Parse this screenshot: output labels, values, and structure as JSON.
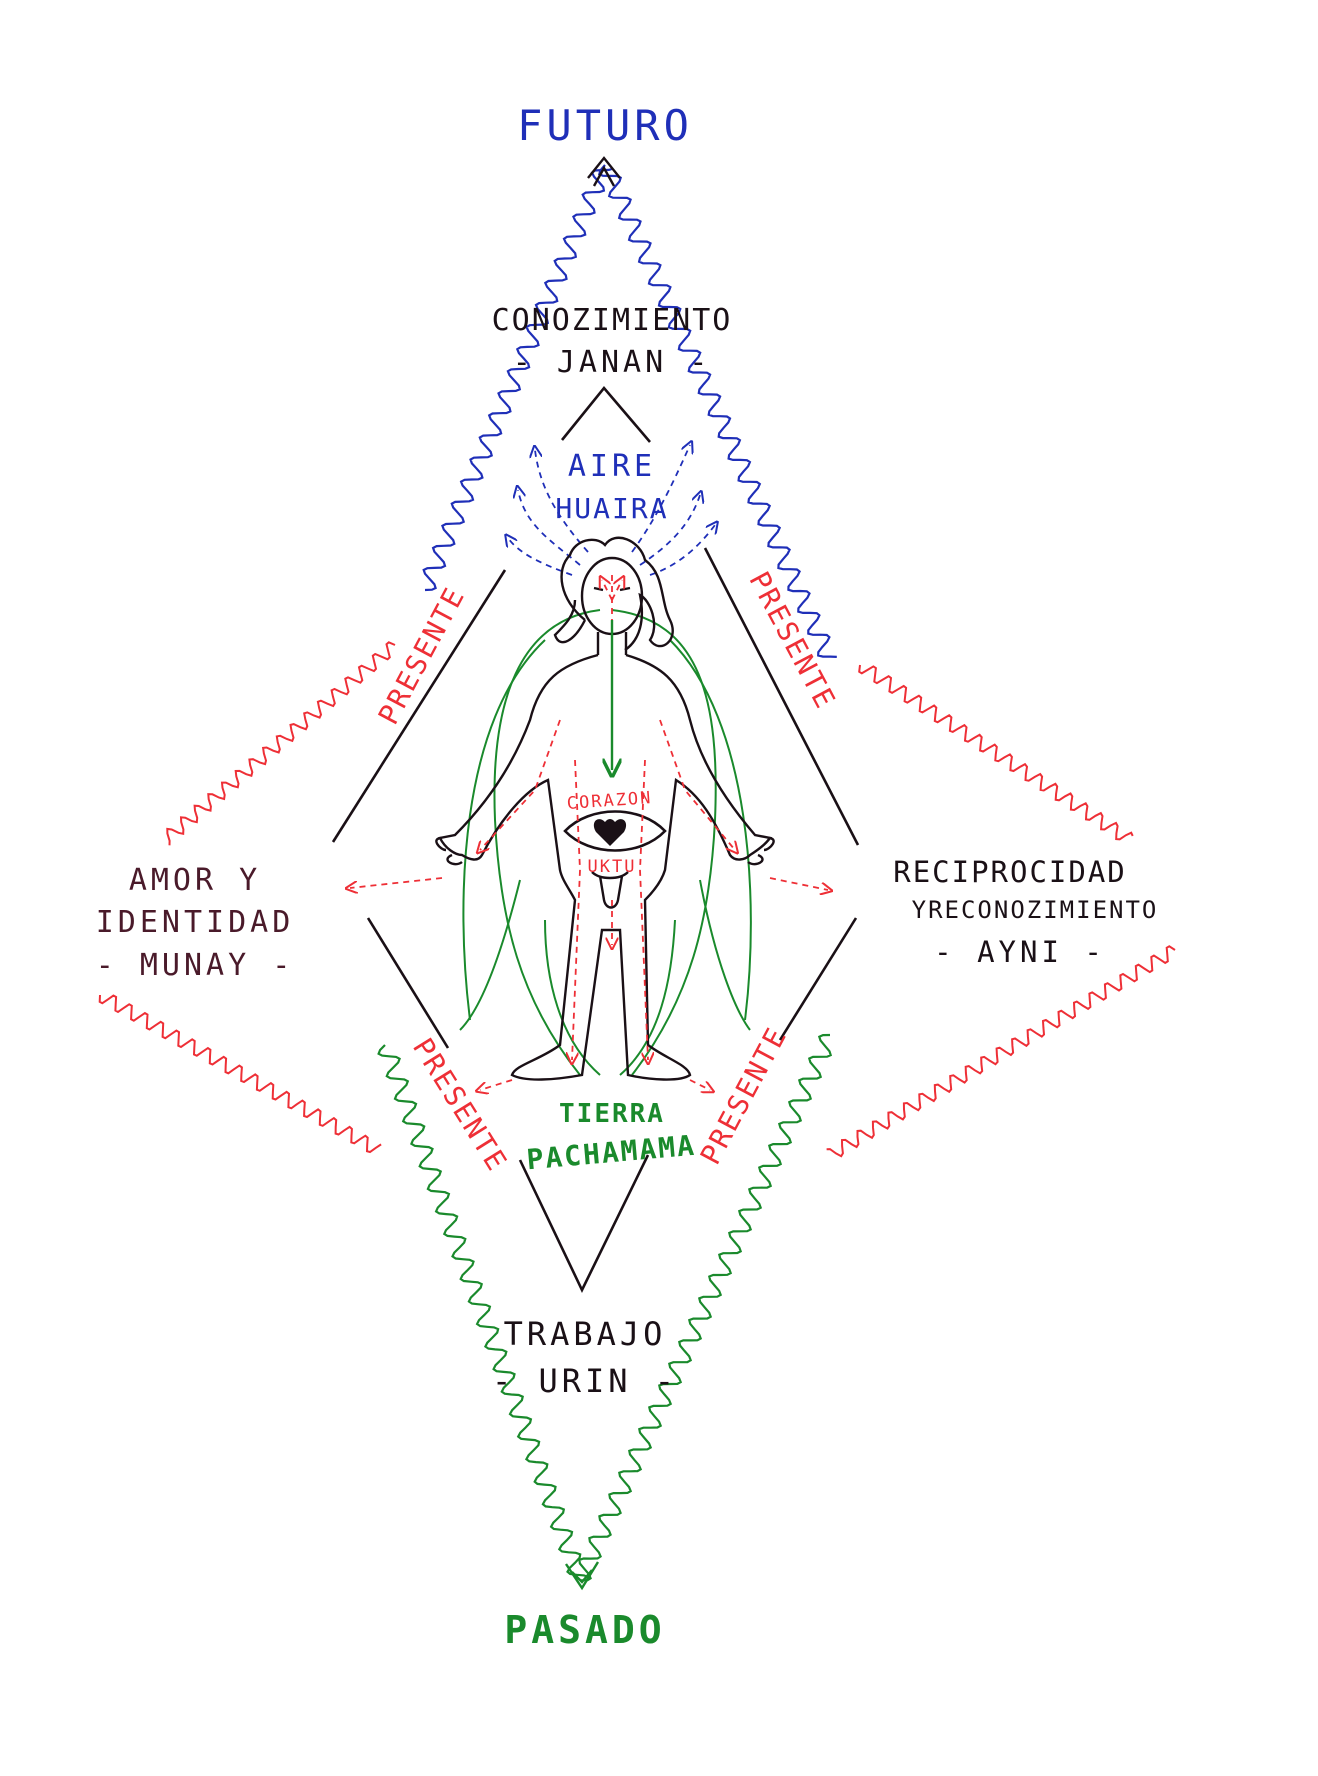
{
  "colors": {
    "future": "#1f2fb8",
    "present": "#ee2f36",
    "past": "#1a8a2c",
    "ink": "#1a1016",
    "side": "#4a1a2a"
  },
  "labels": {
    "futuro": "FUTURO",
    "pasado": "PASADO",
    "conocimiento": "CONOZIMIENTO",
    "janan": "- JANAN -",
    "aire": "AIRE",
    "huaira": "HUAIRA",
    "amor": "AMOR  Y",
    "identidad": "IDENTIDAD",
    "munay": "- MUNAY -",
    "reciprocidad": "RECIPROCIDAD",
    "reconocimiento": "YRECONOZIMIENTO",
    "ayni": "- AYNI -",
    "corazon": "CORAZON",
    "uktu": "UKTU",
    "tierra": "TIERRA",
    "pachamama": "PACHAMAMA",
    "trabajo": "TRABAJO",
    "urin": "- URIN -",
    "presente": "PRESENTE"
  }
}
